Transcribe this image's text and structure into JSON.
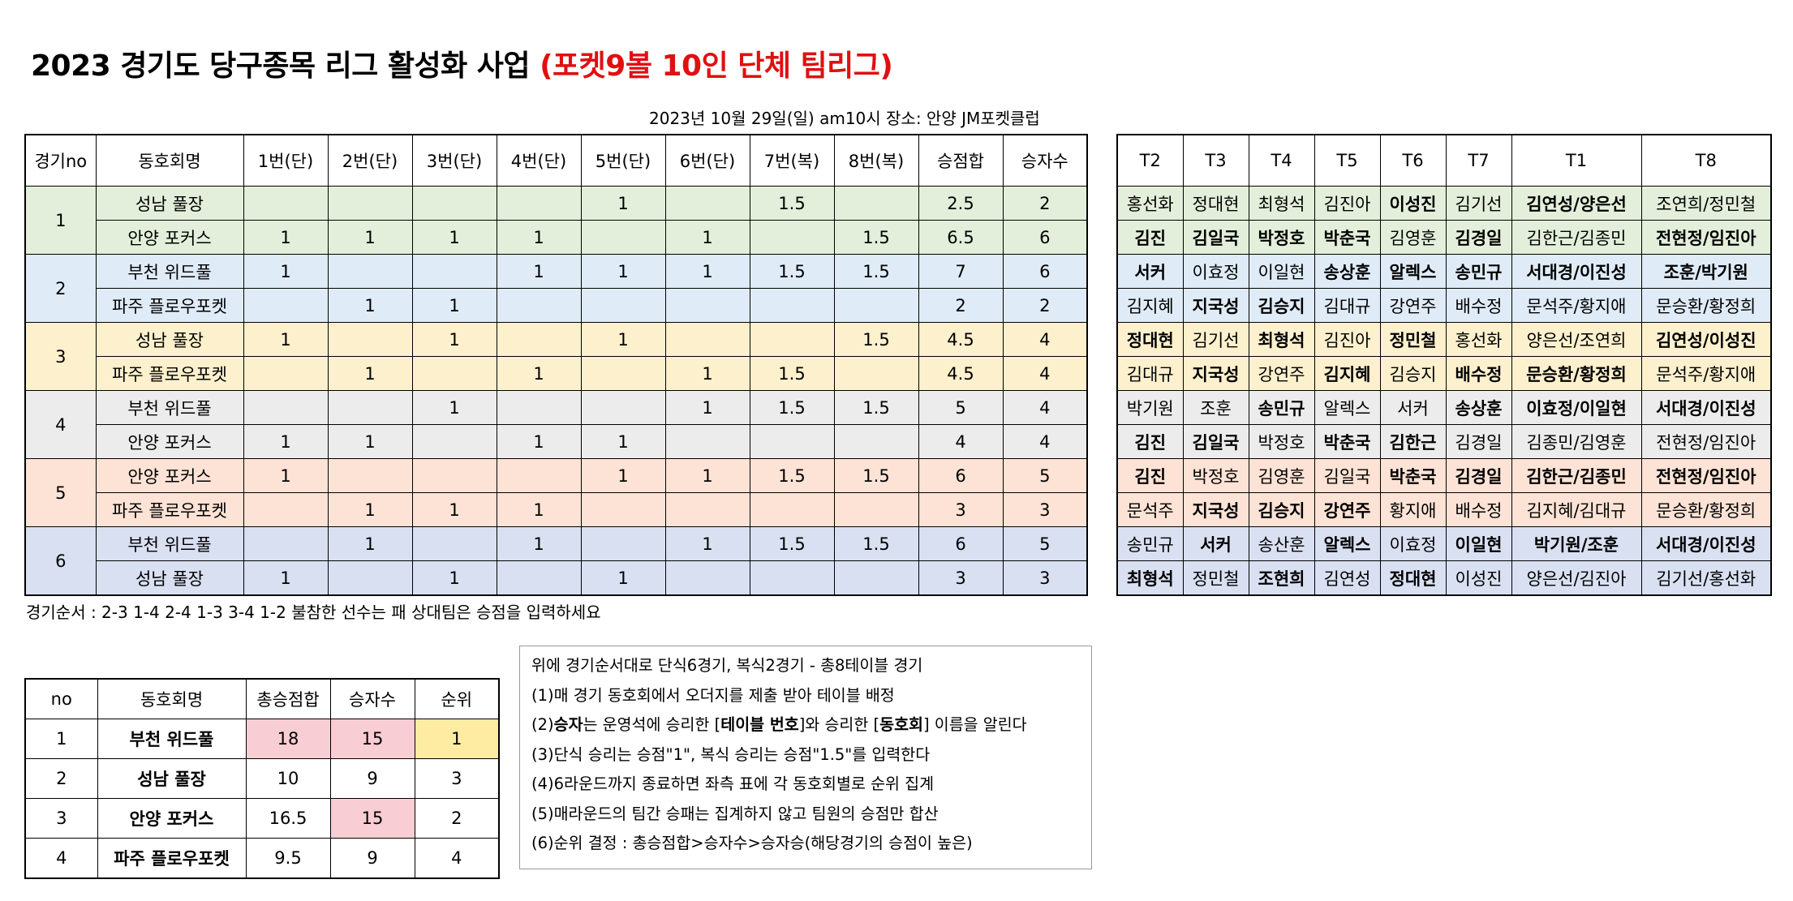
{
  "title": {
    "main": "2023 경기도 당구종목 리그 활성화 사업 ",
    "highlight": "(포켓9볼 10인 단체 팀리그)",
    "highlight_color": "#e01010"
  },
  "dateline": "2023년 10월 29일(일) am10시  장소: 안양 JM포켓클럽",
  "match_table": {
    "headers": [
      "경기no",
      "동호회명",
      "1번(단)",
      "2번(단)",
      "3번(단)",
      "4번(단)",
      "5번(단)",
      "6번(단)",
      "7번(복)",
      "8번(복)",
      "승점합",
      "승자수"
    ],
    "games": [
      {
        "no": "1",
        "rows": [
          {
            "club": "성남 풀장",
            "cells": [
              "",
              "",
              "",
              "",
              "1",
              "",
              "1.5",
              ""
            ],
            "sum": "2.5",
            "wins": "2"
          },
          {
            "club": "안양 포커스",
            "cells": [
              "1",
              "1",
              "1",
              "1",
              "",
              "1",
              "",
              "1.5"
            ],
            "sum": "6.5",
            "wins": "6"
          }
        ]
      },
      {
        "no": "2",
        "rows": [
          {
            "club": "부천 위드풀",
            "cells": [
              "1",
              "",
              "",
              "1",
              "1",
              "1",
              "1.5",
              "1.5"
            ],
            "sum": "7",
            "wins": "6"
          },
          {
            "club": "파주 플로우포켓",
            "cells": [
              "",
              "1",
              "1",
              "",
              "",
              "",
              "",
              ""
            ],
            "sum": "2",
            "wins": "2"
          }
        ]
      },
      {
        "no": "3",
        "rows": [
          {
            "club": "성남 풀장",
            "cells": [
              "1",
              "",
              "1",
              "",
              "1",
              "",
              "",
              "1.5"
            ],
            "sum": "4.5",
            "wins": "4"
          },
          {
            "club": "파주 플로우포켓",
            "cells": [
              "",
              "1",
              "",
              "1",
              "",
              "1",
              "1.5",
              ""
            ],
            "sum": "4.5",
            "wins": "4"
          }
        ]
      },
      {
        "no": "4",
        "rows": [
          {
            "club": "부천 위드풀",
            "cells": [
              "",
              "",
              "1",
              "",
              "",
              "1",
              "1.5",
              "1.5"
            ],
            "sum": "5",
            "wins": "4"
          },
          {
            "club": "안양 포커스",
            "cells": [
              "1",
              "1",
              "",
              "1",
              "1",
              "",
              "",
              ""
            ],
            "sum": "4",
            "wins": "4"
          }
        ]
      },
      {
        "no": "5",
        "rows": [
          {
            "club": "안양 포커스",
            "cells": [
              "1",
              "",
              "",
              "",
              "1",
              "1",
              "1.5",
              "1.5"
            ],
            "sum": "6",
            "wins": "5"
          },
          {
            "club": "파주 플로우포켓",
            "cells": [
              "",
              "1",
              "1",
              "1",
              "",
              "",
              "",
              ""
            ],
            "sum": "3",
            "wins": "3"
          }
        ]
      },
      {
        "no": "6",
        "rows": [
          {
            "club": "부천 위드풀",
            "cells": [
              "",
              "1",
              "",
              "1",
              "",
              "1",
              "1.5",
              "1.5"
            ],
            "sum": "6",
            "wins": "5"
          },
          {
            "club": "성남 풀장",
            "cells": [
              "1",
              "",
              "1",
              "",
              "1",
              "",
              "",
              ""
            ],
            "sum": "3",
            "wins": "3"
          }
        ]
      }
    ]
  },
  "player_table": {
    "headers": [
      "T2",
      "T3",
      "T4",
      "T5",
      "T6",
      "T7",
      "T1",
      "T8"
    ],
    "rows": [
      [
        {
          "t": "홍선화",
          "b": 0
        },
        {
          "t": "정대현",
          "b": 0
        },
        {
          "t": "최형석",
          "b": 0
        },
        {
          "t": "김진아",
          "b": 0
        },
        {
          "t": "이성진",
          "b": 1
        },
        {
          "t": "김기선",
          "b": 0
        },
        {
          "t": "김연성/양은선",
          "b": 1
        },
        {
          "t": "조연희/정민철",
          "b": 0
        }
      ],
      [
        {
          "t": "김진",
          "b": 1
        },
        {
          "t": "김일국",
          "b": 1
        },
        {
          "t": "박정호",
          "b": 1
        },
        {
          "t": "박춘국",
          "b": 1
        },
        {
          "t": "김영훈",
          "b": 0
        },
        {
          "t": "김경일",
          "b": 1
        },
        {
          "t": "김한근/김종민",
          "b": 0
        },
        {
          "t": "전현정/임진아",
          "b": 1
        }
      ],
      [
        {
          "t": "서커",
          "b": 1
        },
        {
          "t": "이효정",
          "b": 0
        },
        {
          "t": "이일현",
          "b": 0
        },
        {
          "t": "송상훈",
          "b": 1
        },
        {
          "t": "알렉스",
          "b": 1
        },
        {
          "t": "송민규",
          "b": 1
        },
        {
          "t": "서대경/이진성",
          "b": 1
        },
        {
          "t": "조훈/박기원",
          "b": 1
        }
      ],
      [
        {
          "t": "김지혜",
          "b": 0
        },
        {
          "t": "지국성",
          "b": 1
        },
        {
          "t": "김승지",
          "b": 1
        },
        {
          "t": "김대규",
          "b": 0
        },
        {
          "t": "강연주",
          "b": 0
        },
        {
          "t": "배수정",
          "b": 0
        },
        {
          "t": "문석주/황지애",
          "b": 0
        },
        {
          "t": "문승환/황정희",
          "b": 0
        }
      ],
      [
        {
          "t": "정대현",
          "b": 1
        },
        {
          "t": "김기선",
          "b": 0
        },
        {
          "t": "최형석",
          "b": 1
        },
        {
          "t": "김진아",
          "b": 0
        },
        {
          "t": "정민철",
          "b": 1
        },
        {
          "t": "홍선화",
          "b": 0
        },
        {
          "t": "양은선/조연희",
          "b": 0
        },
        {
          "t": "김연성/이성진",
          "b": 1
        }
      ],
      [
        {
          "t": "김대규",
          "b": 0
        },
        {
          "t": "지국성",
          "b": 1
        },
        {
          "t": "강연주",
          "b": 0
        },
        {
          "t": "김지혜",
          "b": 1
        },
        {
          "t": "김승지",
          "b": 0
        },
        {
          "t": "배수정",
          "b": 1
        },
        {
          "t": "문승환/황정희",
          "b": 1
        },
        {
          "t": "문석주/황지애",
          "b": 0
        }
      ],
      [
        {
          "t": "박기원",
          "b": 0
        },
        {
          "t": "조훈",
          "b": 0
        },
        {
          "t": "송민규",
          "b": 1
        },
        {
          "t": "알렉스",
          "b": 0
        },
        {
          "t": "서커",
          "b": 0
        },
        {
          "t": "송상훈",
          "b": 1
        },
        {
          "t": "이효정/이일현",
          "b": 1
        },
        {
          "t": "서대경/이진성",
          "b": 1
        }
      ],
      [
        {
          "t": "김진",
          "b": 1
        },
        {
          "t": "김일국",
          "b": 1
        },
        {
          "t": "박정호",
          "b": 0
        },
        {
          "t": "박춘국",
          "b": 1
        },
        {
          "t": "김한근",
          "b": 1
        },
        {
          "t": "김경일",
          "b": 0
        },
        {
          "t": "김종민/김영훈",
          "b": 0
        },
        {
          "t": "전현정/임진아",
          "b": 0
        }
      ],
      [
        {
          "t": "김진",
          "b": 1
        },
        {
          "t": "박정호",
          "b": 0
        },
        {
          "t": "김영훈",
          "b": 0
        },
        {
          "t": "김일국",
          "b": 0
        },
        {
          "t": "박춘국",
          "b": 1
        },
        {
          "t": "김경일",
          "b": 1
        },
        {
          "t": "김한근/김종민",
          "b": 1
        },
        {
          "t": "전현정/임진아",
          "b": 1
        }
      ],
      [
        {
          "t": "문석주",
          "b": 0
        },
        {
          "t": "지국성",
          "b": 1
        },
        {
          "t": "김승지",
          "b": 1
        },
        {
          "t": "강연주",
          "b": 1
        },
        {
          "t": "황지애",
          "b": 0
        },
        {
          "t": "배수정",
          "b": 0
        },
        {
          "t": "김지혜/김대규",
          "b": 0
        },
        {
          "t": "문승환/황정희",
          "b": 0
        }
      ],
      [
        {
          "t": "송민규",
          "b": 0
        },
        {
          "t": "서커",
          "b": 1
        },
        {
          "t": "송산훈",
          "b": 0
        },
        {
          "t": "알렉스",
          "b": 1
        },
        {
          "t": "이효정",
          "b": 0
        },
        {
          "t": "이일현",
          "b": 1
        },
        {
          "t": "박기원/조훈",
          "b": 1
        },
        {
          "t": "서대경/이진성",
          "b": 1
        }
      ],
      [
        {
          "t": "최형석",
          "b": 1
        },
        {
          "t": "정민철",
          "b": 0
        },
        {
          "t": "조현희",
          "b": 1
        },
        {
          "t": "김연성",
          "b": 0
        },
        {
          "t": "정대현",
          "b": 1
        },
        {
          "t": "이성진",
          "b": 0
        },
        {
          "t": "양은선/김진아",
          "b": 0
        },
        {
          "t": "김기선/홍선화",
          "b": 0
        }
      ]
    ]
  },
  "order_note": "경기순서 : 2-3 1-4 2-4 1-3 3-4 1-2  불참한 선수는 패 상대팀은 승점을 입력하세요",
  "ranking_table": {
    "headers": [
      "no",
      "동호회명",
      "총승점합",
      "승자수",
      "순위"
    ],
    "rows": [
      {
        "no": "1",
        "club": "부천 위드풀",
        "total": "18",
        "wins": "15",
        "rank": "1"
      },
      {
        "no": "2",
        "club": "성남 풀장",
        "total": "10",
        "wins": "9",
        "rank": "3"
      },
      {
        "no": "3",
        "club": "안양 포커스",
        "total": "16.5",
        "wins": "15",
        "rank": "2"
      },
      {
        "no": "4",
        "club": "파주 플로우포켓",
        "total": "9.5",
        "wins": "9",
        "rank": "4"
      }
    ],
    "highlight_pink": "#f8cdd4",
    "highlight_yellow": "#fdeca2"
  },
  "rules": {
    "intro": "위에 경기순서대로 단식6경기, 복식2경기 - 총8테이블 경기",
    "r1": "(1)매 경기 동호회에서 오더지를 제출 받아 테이블 배정",
    "r2": {
      "p1": "(2)",
      "b1": "승자",
      "p2": "는 운영석에 승리한 [",
      "b2": "테이블 번호",
      "p3": "]와 승리한 [",
      "b3": "동호회",
      "p4": "] 이름을 알린다"
    },
    "r3": "(3)단식 승리는 승점\"1\", 복식 승리는 승점\"1.5\"를 입력한다",
    "r4": "(4)6라운드까지 종료하면 좌측 표에 각 동호회별로 순위 집계",
    "r5": "(5)매라운드의 팀간 승패는 집계하지 않고 팀원의 승점만 합산",
    "r6": "(6)순위 결정 : 총승점합>승자수>승자승(해당경기의 승점이 높은)"
  },
  "group_colors": [
    "#e3efda",
    "#dfebf7",
    "#fdf0cd",
    "#ececec",
    "#fce3d5",
    "#d9e0f2"
  ]
}
